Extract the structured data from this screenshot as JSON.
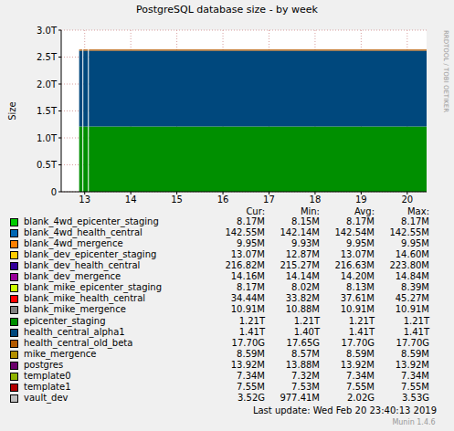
{
  "chart_data": {
    "type": "area",
    "stacked": true,
    "grid": true,
    "title": "PostgreSQL database size - by week",
    "y_label": "Size",
    "side_label": "RRDTOOL / TOBI OETIKER",
    "last_update": "Last update: Wed Feb 20 23:40:13 2019",
    "footer": "Munin 1.4.6",
    "legend_columns": [
      "Cur:",
      "Min:",
      "Avg:",
      "Max:"
    ],
    "x": [
      12.88,
      12.95,
      12.96,
      12.97,
      13.07,
      13.08,
      13.09,
      14,
      15,
      16,
      17,
      18,
      19,
      20,
      20.42
    ],
    "xlim": [
      12.49,
      20.42
    ],
    "xticks": [
      13,
      14,
      15,
      16,
      17,
      18,
      19,
      20
    ],
    "ylim": [
      0,
      3
    ],
    "yticks": [
      0,
      {
        "value": 0.5,
        "label": "0.5T"
      },
      {
        "value": 1,
        "label": "1.0T"
      },
      {
        "value": 1.5,
        "label": "1.5T"
      },
      {
        "value": 2,
        "label": "2.0T"
      },
      {
        "value": 2.5,
        "label": "2.5T"
      },
      {
        "value": 3,
        "label": "3.0T"
      }
    ],
    "series": [
      {
        "name": "blank_4wd_epicenter_staging",
        "color": "#00CC00",
        "stats": [
          "8.17M",
          "8.15M",
          "8.17M",
          "8.17M"
        ],
        "values": [
          8.17e-06,
          8.17e-06,
          null,
          8.17e-06,
          8.17e-06,
          null,
          8.17e-06,
          8.17e-06,
          8.17e-06,
          8.17e-06,
          8.17e-06,
          8.17e-06,
          8.17e-06,
          8.17e-06,
          8.17e-06
        ]
      },
      {
        "name": "blank_4wd_health_central",
        "color": "#0066B3",
        "stats": [
          "142.55M",
          "142.14M",
          "142.54M",
          "142.55M"
        ],
        "values": [
          0.00014255,
          0.00014255,
          null,
          0.00014255,
          0.00014255,
          null,
          0.00014255,
          0.00014255,
          0.00014255,
          0.00014255,
          0.00014255,
          0.00014255,
          0.00014255,
          0.00014255,
          0.00014255
        ]
      },
      {
        "name": "blank_4wd_mergence",
        "color": "#FF8000",
        "stats": [
          "9.95M",
          "9.93M",
          "9.95M",
          "9.95M"
        ],
        "values": [
          9.95e-06,
          9.95e-06,
          null,
          9.95e-06,
          9.95e-06,
          null,
          9.95e-06,
          9.95e-06,
          9.95e-06,
          9.95e-06,
          9.95e-06,
          9.95e-06,
          9.95e-06,
          9.95e-06,
          9.95e-06
        ]
      },
      {
        "name": "blank_dev_epicenter_staging",
        "color": "#FFCC00",
        "stats": [
          "13.07M",
          "12.87M",
          "13.07M",
          "14.60M"
        ],
        "values": [
          1.307e-05,
          1.307e-05,
          null,
          1.307e-05,
          1.307e-05,
          null,
          1.307e-05,
          1.307e-05,
          1.307e-05,
          1.307e-05,
          1.307e-05,
          1.307e-05,
          1.307e-05,
          1.307e-05,
          1.307e-05
        ]
      },
      {
        "name": "blank_dev_health_central",
        "color": "#330099",
        "stats": [
          "216.82M",
          "215.27M",
          "216.63M",
          "223.80M"
        ],
        "values": [
          0.00021682,
          0.00021682,
          null,
          0.00021682,
          0.00021682,
          null,
          0.00021682,
          0.00021682,
          0.00021682,
          0.00021682,
          0.00021682,
          0.00021682,
          0.00021682,
          0.00021682,
          0.00021682
        ]
      },
      {
        "name": "blank_dev_mergence",
        "color": "#990099",
        "stats": [
          "14.16M",
          "14.14M",
          "14.20M",
          "14.84M"
        ],
        "values": [
          1.416e-05,
          1.416e-05,
          null,
          1.416e-05,
          1.416e-05,
          null,
          1.416e-05,
          1.416e-05,
          1.416e-05,
          1.416e-05,
          1.416e-05,
          1.416e-05,
          1.416e-05,
          1.416e-05,
          1.416e-05
        ]
      },
      {
        "name": "blank_mike_epicenter_staging",
        "color": "#CCFF00",
        "stats": [
          "8.17M",
          "8.02M",
          "8.13M",
          "8.39M"
        ],
        "values": [
          8.17e-06,
          8.17e-06,
          null,
          8.17e-06,
          8.17e-06,
          null,
          8.17e-06,
          8.17e-06,
          8.17e-06,
          8.17e-06,
          8.17e-06,
          8.17e-06,
          8.17e-06,
          8.17e-06,
          8.17e-06
        ]
      },
      {
        "name": "blank_mike_health_central",
        "color": "#FF0000",
        "stats": [
          "34.44M",
          "33.82M",
          "37.61M",
          "45.27M"
        ],
        "values": [
          3.444e-05,
          3.444e-05,
          null,
          3.444e-05,
          3.444e-05,
          null,
          3.444e-05,
          3.444e-05,
          3.444e-05,
          3.444e-05,
          3.444e-05,
          3.444e-05,
          3.444e-05,
          3.444e-05,
          3.444e-05
        ]
      },
      {
        "name": "blank_mike_mergence",
        "color": "#808080",
        "stats": [
          "10.91M",
          "10.88M",
          "10.91M",
          "10.91M"
        ],
        "values": [
          1.091e-05,
          1.091e-05,
          null,
          1.091e-05,
          1.091e-05,
          null,
          1.091e-05,
          1.091e-05,
          1.091e-05,
          1.091e-05,
          1.091e-05,
          1.091e-05,
          1.091e-05,
          1.091e-05,
          1.091e-05
        ]
      },
      {
        "name": "epicenter_staging",
        "color": "#008F00",
        "stats": [
          "1.21T",
          "1.21T",
          "1.21T",
          "1.21T"
        ],
        "values": [
          1.21,
          1.21,
          null,
          1.21,
          1.21,
          null,
          1.21,
          1.21,
          1.21,
          1.21,
          1.21,
          1.21,
          1.21,
          1.21,
          1.21
        ]
      },
      {
        "name": "health_central_alpha1",
        "color": "#00487D",
        "stats": [
          "1.41T",
          "1.40T",
          "1.41T",
          "1.41T"
        ],
        "values": [
          1.41,
          1.41,
          null,
          1.41,
          1.41,
          null,
          1.41,
          1.41,
          1.41,
          1.41,
          1.41,
          1.41,
          1.41,
          1.41,
          1.41
        ]
      },
      {
        "name": "health_central_old_beta",
        "color": "#B35A00",
        "stats": [
          "17.70G",
          "17.65G",
          "17.70G",
          "17.70G"
        ],
        "values": [
          0.0177,
          0.0177,
          null,
          0.0177,
          0.0177,
          null,
          0.0177,
          0.0177,
          0.0177,
          0.0177,
          0.0177,
          0.0177,
          0.0177,
          0.0177,
          0.0177
        ]
      },
      {
        "name": "mike_mergence",
        "color": "#B38F00",
        "stats": [
          "8.59M",
          "8.57M",
          "8.59M",
          "8.59M"
        ],
        "values": [
          8.59e-06,
          8.59e-06,
          null,
          8.59e-06,
          8.59e-06,
          null,
          8.59e-06,
          8.59e-06,
          8.59e-06,
          8.59e-06,
          8.59e-06,
          8.59e-06,
          8.59e-06,
          8.59e-06,
          8.59e-06
        ]
      },
      {
        "name": "postgres",
        "color": "#6B006B",
        "stats": [
          "13.92M",
          "13.88M",
          "13.92M",
          "13.92M"
        ],
        "values": [
          1.392e-05,
          1.392e-05,
          null,
          1.392e-05,
          1.392e-05,
          null,
          1.392e-05,
          1.392e-05,
          1.392e-05,
          1.392e-05,
          1.392e-05,
          1.392e-05,
          1.392e-05,
          1.392e-05,
          1.392e-05
        ]
      },
      {
        "name": "template0",
        "color": "#8FB300",
        "stats": [
          "7.34M",
          "7.32M",
          "7.34M",
          "7.34M"
        ],
        "values": [
          7.34e-06,
          7.34e-06,
          null,
          7.34e-06,
          7.34e-06,
          null,
          7.34e-06,
          7.34e-06,
          7.34e-06,
          7.34e-06,
          7.34e-06,
          7.34e-06,
          7.34e-06,
          7.34e-06,
          7.34e-06
        ]
      },
      {
        "name": "template1",
        "color": "#B30000",
        "stats": [
          "7.55M",
          "7.53M",
          "7.55M",
          "7.55M"
        ],
        "values": [
          7.55e-06,
          7.55e-06,
          null,
          7.55e-06,
          7.55e-06,
          null,
          7.55e-06,
          7.55e-06,
          7.55e-06,
          7.55e-06,
          7.55e-06,
          7.55e-06,
          7.55e-06,
          7.55e-06,
          7.55e-06
        ]
      },
      {
        "name": "vault_dev",
        "color": "#BEBEBE",
        "stats": [
          "3.52G",
          "977.41M",
          "2.02G",
          "3.53G"
        ],
        "values": [
          0.00098,
          0.00105,
          null,
          0.0011,
          0.00115,
          null,
          0.0012,
          0.0014,
          0.0017,
          0.002,
          0.0022,
          0.0025,
          0.0028,
          0.0032,
          0.00353
        ]
      }
    ]
  }
}
